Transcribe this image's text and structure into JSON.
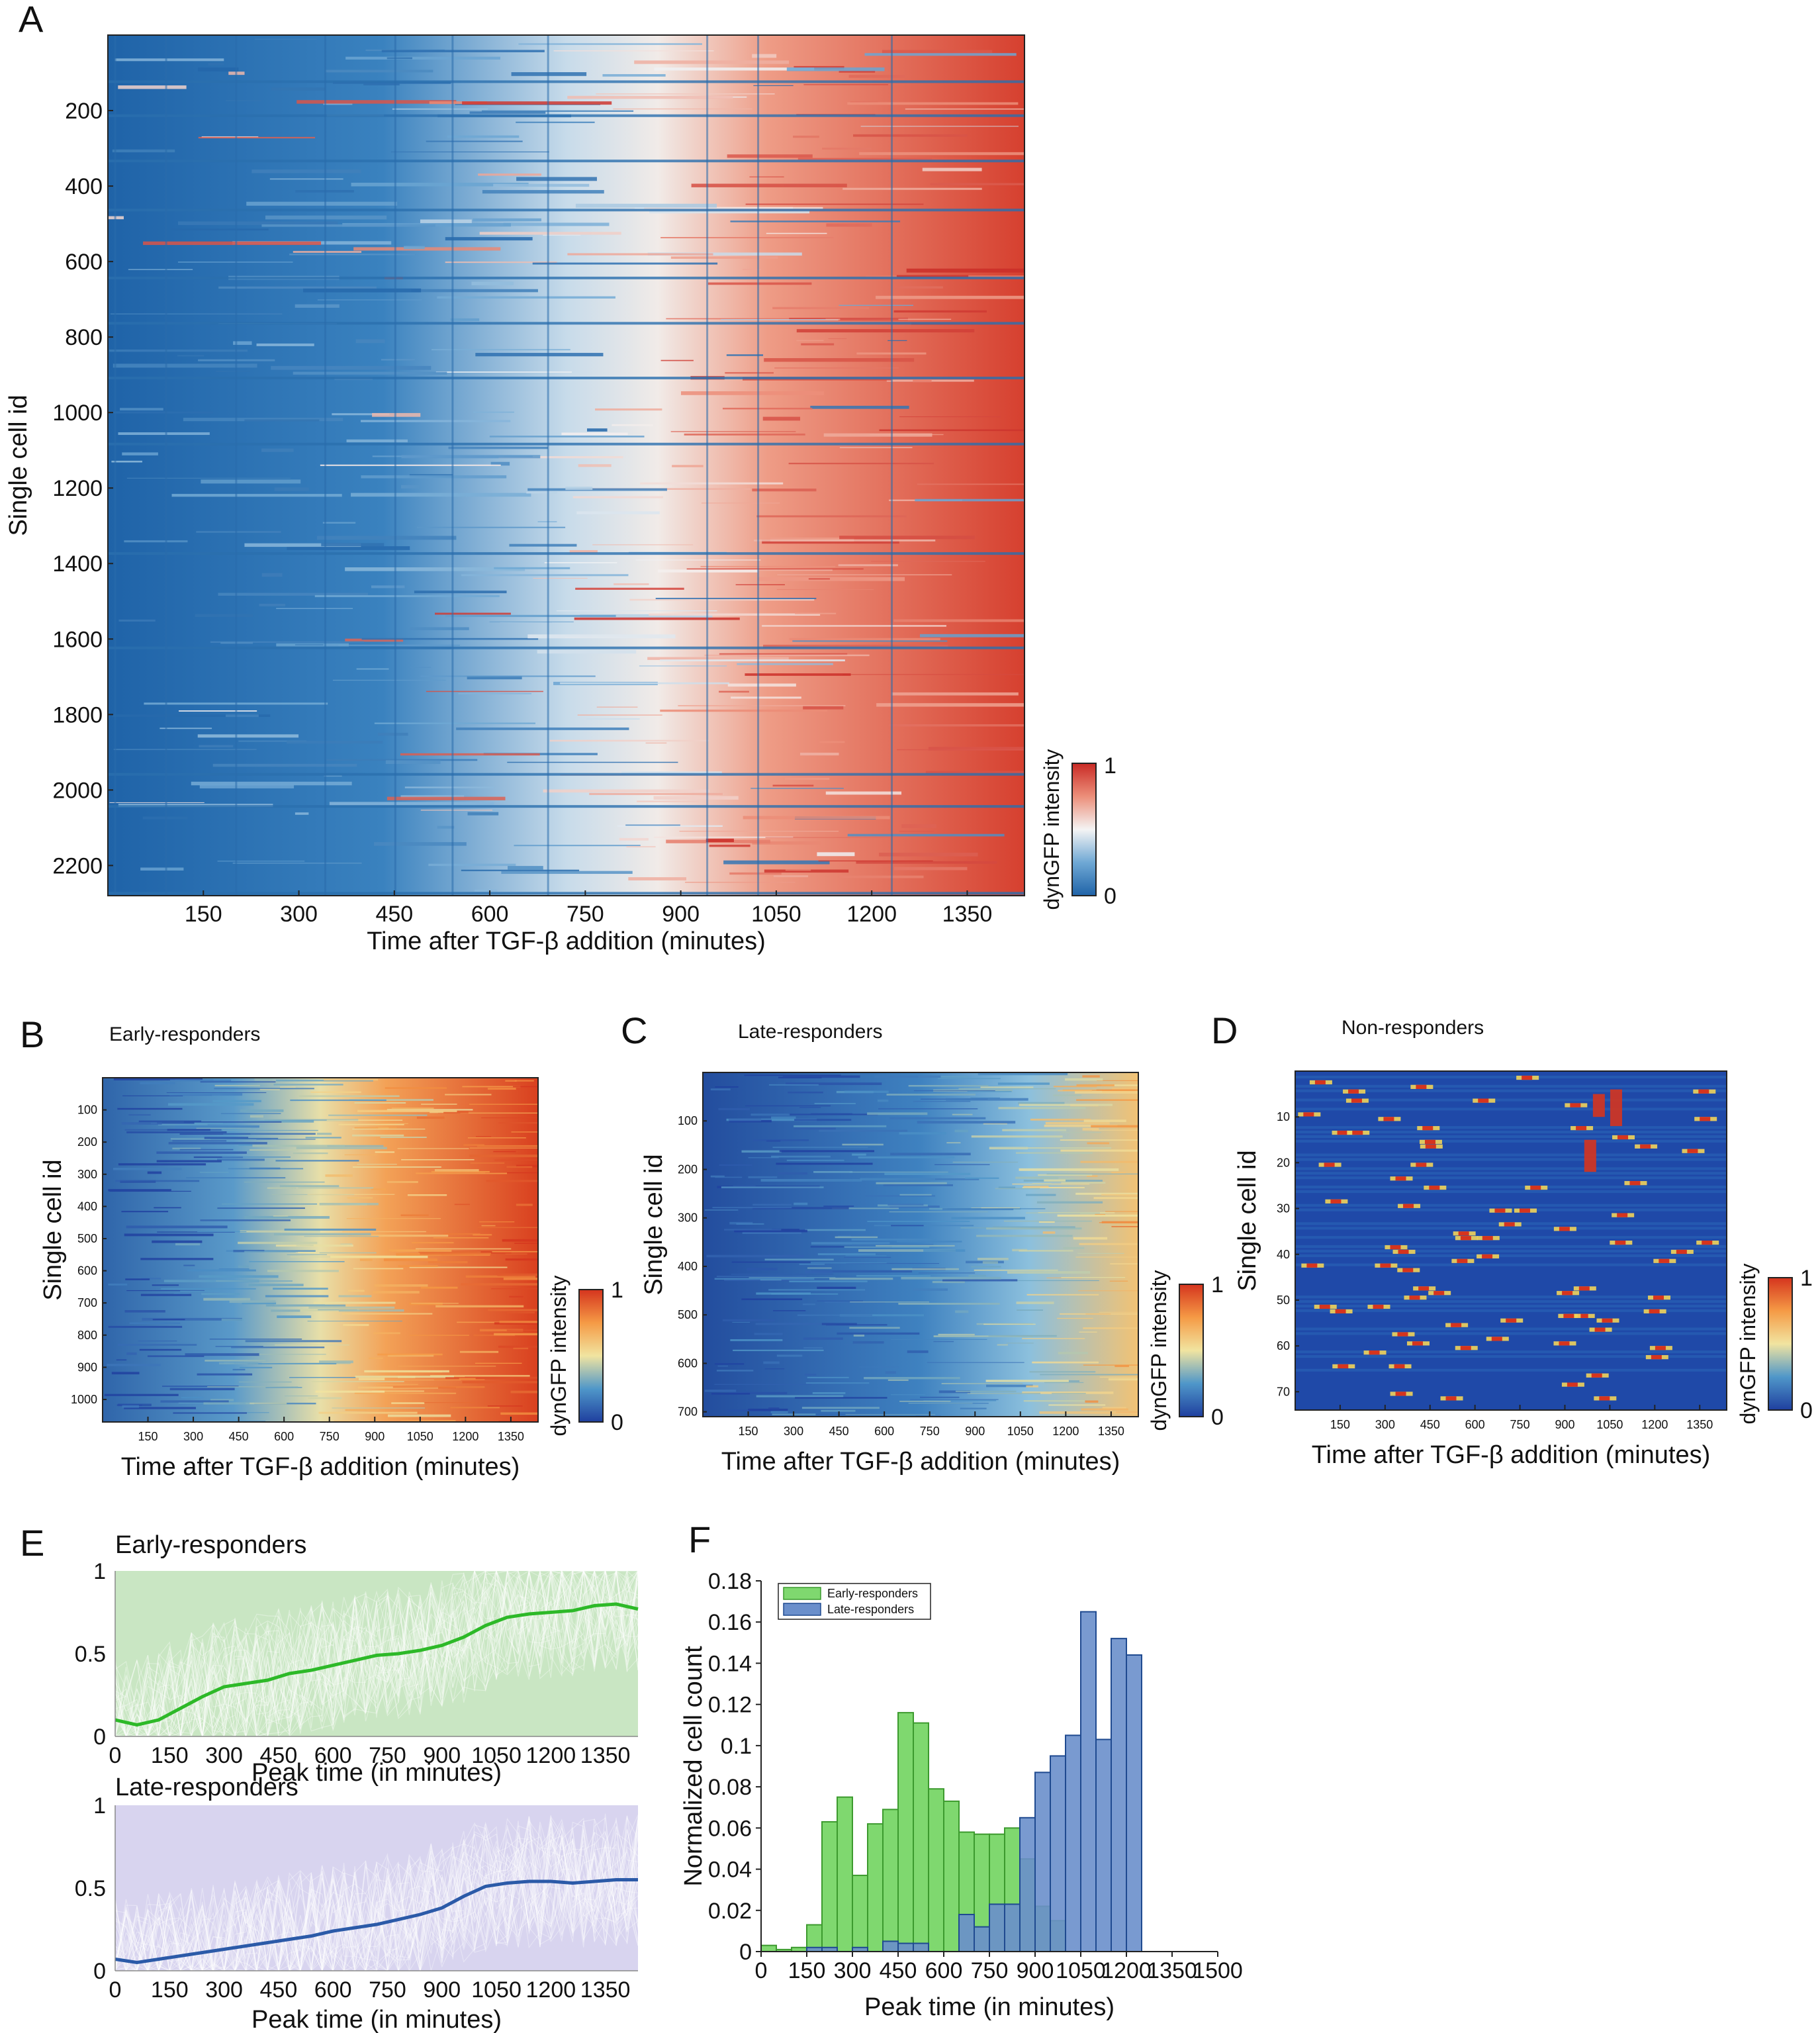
{
  "figure": {
    "colors": {
      "diverging_low": "#1f63a8",
      "diverging_mid": "#f4f4f4",
      "diverging_high": "#c92a25",
      "jet_low": "#1f3f9f",
      "jet_mid": "#f1e4a0",
      "jet_high": "#d5341e",
      "early": "#2db928",
      "early_band": "#c9e6c3",
      "early_bar": "#7fd86f",
      "late": "#2b5aa8",
      "late_band": "#d8d4ef",
      "late_bar": "#6a8fcb"
    }
  },
  "panel_a": {
    "letter": "A",
    "ylabel": "Single cell id",
    "xlabel": "Time after TGF-β addition (minutes)",
    "xticks": [
      "150",
      "300",
      "450",
      "600",
      "750",
      "900",
      "1050",
      "1200",
      "1350"
    ],
    "yticks": [
      "200",
      "400",
      "600",
      "800",
      "1000",
      "1200",
      "1400",
      "1600",
      "1800",
      "2000",
      "2200"
    ],
    "cbar_label": "dynGFP intensity",
    "cbar_max": "1",
    "cbar_min": "0"
  },
  "panel_b": {
    "letter": "B",
    "title": "Early-responders",
    "ylabel": "Single cell id",
    "xlabel": "Time after TGF-β addition (minutes)",
    "xticks": [
      "150",
      "300",
      "450",
      "600",
      "750",
      "900",
      "1050",
      "1200",
      "1350"
    ],
    "yticks": [
      "100",
      "200",
      "300",
      "400",
      "500",
      "600",
      "700",
      "800",
      "900",
      "1000"
    ],
    "cbar_label": "dynGFP intensity",
    "cbar_max": "1",
    "cbar_min": "0"
  },
  "panel_c": {
    "letter": "C",
    "title": "Late-responders",
    "ylabel": "Single cell id",
    "xlabel": "Time after TGF-β addition (minutes)",
    "xticks": [
      "150",
      "300",
      "450",
      "600",
      "750",
      "900",
      "1050",
      "1200",
      "1350"
    ],
    "yticks": [
      "100",
      "200",
      "300",
      "400",
      "500",
      "600",
      "700"
    ],
    "cbar_label": "dynGFP intensity",
    "cbar_max": "1",
    "cbar_min": "0"
  },
  "panel_d": {
    "letter": "D",
    "title": "Non-responders",
    "ylabel": "Single cell id",
    "xlabel": "Time after TGF-β addition (minutes)",
    "xticks": [
      "150",
      "300",
      "450",
      "600",
      "750",
      "900",
      "1050",
      "1200",
      "1350"
    ],
    "yticks": [
      "10",
      "20",
      "30",
      "40",
      "50",
      "60",
      "70"
    ],
    "cbar_label": "dynGFP intensity",
    "cbar_max": "1",
    "cbar_min": "0"
  },
  "panel_e": {
    "letter": "E",
    "top_title": "Early-responders",
    "bottom_title": "Late-responders",
    "xlabel": "Peak time (in minutes)",
    "xticks": [
      "0",
      "150",
      "300",
      "450",
      "600",
      "750",
      "900",
      "1050",
      "1200",
      "1350"
    ],
    "yticks": [
      "0",
      "0.5",
      "1"
    ]
  },
  "panel_f": {
    "letter": "F",
    "xlabel": "Peak time (in minutes)",
    "ylabel": "Normalized cell count",
    "xticks": [
      "0",
      "150",
      "300",
      "450",
      "600",
      "750",
      "900",
      "1050",
      "1200",
      "1350",
      "1500"
    ],
    "yticks": [
      "0",
      "0.02",
      "0.04",
      "0.06",
      "0.08",
      "0.1",
      "0.12",
      "0.14",
      "0.16",
      "0.18"
    ],
    "legend": [
      "Early-responders",
      "Late-responders"
    ]
  },
  "chart_data": [
    {
      "id": "A",
      "type": "heatmap",
      "title": "",
      "xlabel": "Time after TGF-β addition (minutes)",
      "ylabel": "Single cell id",
      "xlim": [
        0,
        1440
      ],
      "ylim": [
        0,
        2280
      ],
      "n_cells": 2280,
      "colorbar": {
        "label": "dynGFP intensity",
        "range": [
          0,
          1
        ],
        "colormap": "blue-white-red"
      },
      "pattern": "low (blue) before ~600 min, rising to high (red) after ~900 min"
    },
    {
      "id": "B",
      "type": "heatmap",
      "title": "Early-responders",
      "xlabel": "Time after TGF-β addition (minutes)",
      "ylabel": "Single cell id",
      "xlim": [
        0,
        1440
      ],
      "ylim": [
        0,
        1070
      ],
      "n_cells": 1070,
      "colorbar": {
        "label": "dynGFP intensity",
        "range": [
          0,
          1
        ],
        "colormap": "jet"
      }
    },
    {
      "id": "C",
      "type": "heatmap",
      "title": "Late-responders",
      "xlabel": "Time after TGF-β addition (minutes)",
      "ylabel": "Single cell id",
      "xlim": [
        0,
        1440
      ],
      "ylim": [
        0,
        710
      ],
      "n_cells": 710,
      "colorbar": {
        "label": "dynGFP intensity",
        "range": [
          0,
          1
        ],
        "colormap": "jet"
      }
    },
    {
      "id": "D",
      "type": "heatmap",
      "title": "Non-responders",
      "xlabel": "Time after TGF-β addition (minutes)",
      "ylabel": "Single cell id",
      "xlim": [
        0,
        1440
      ],
      "ylim": [
        0,
        74
      ],
      "n_cells": 74,
      "colorbar": {
        "label": "dynGFP intensity",
        "range": [
          0,
          1
        ],
        "colormap": "jet"
      }
    },
    {
      "id": "E-top",
      "type": "line",
      "title": "Early-responders",
      "xlabel": "Peak time (in minutes)",
      "xlim": [
        0,
        1440
      ],
      "ylim": [
        0,
        1
      ],
      "x": [
        0,
        60,
        120,
        180,
        240,
        300,
        360,
        420,
        480,
        540,
        600,
        660,
        720,
        780,
        840,
        900,
        960,
        1020,
        1080,
        1140,
        1200,
        1260,
        1320,
        1380,
        1440
      ],
      "series": [
        {
          "name": "mean",
          "values": [
            0.1,
            0.07,
            0.1,
            0.17,
            0.24,
            0.3,
            0.32,
            0.34,
            0.38,
            0.4,
            0.43,
            0.46,
            0.49,
            0.5,
            0.52,
            0.55,
            0.6,
            0.67,
            0.72,
            0.74,
            0.75,
            0.76,
            0.79,
            0.8,
            0.77
          ]
        }
      ],
      "band": "individual traces spanning 0–1"
    },
    {
      "id": "E-bottom",
      "type": "line",
      "title": "Late-responders",
      "xlabel": "Peak time (in minutes)",
      "xlim": [
        0,
        1440
      ],
      "ylim": [
        0,
        1
      ],
      "x": [
        0,
        60,
        120,
        180,
        240,
        300,
        360,
        420,
        480,
        540,
        600,
        660,
        720,
        780,
        840,
        900,
        960,
        1020,
        1080,
        1140,
        1200,
        1260,
        1320,
        1380,
        1440
      ],
      "series": [
        {
          "name": "mean",
          "values": [
            0.07,
            0.05,
            0.07,
            0.09,
            0.11,
            0.13,
            0.15,
            0.17,
            0.19,
            0.21,
            0.24,
            0.26,
            0.28,
            0.31,
            0.34,
            0.38,
            0.45,
            0.51,
            0.53,
            0.54,
            0.54,
            0.53,
            0.54,
            0.55,
            0.55
          ]
        }
      ],
      "band": "individual traces spanning 0–1"
    },
    {
      "id": "F",
      "type": "bar",
      "xlabel": "Peak time (in minutes)",
      "ylabel": "Normalized cell count",
      "xlim": [
        0,
        1500
      ],
      "ylim": [
        0,
        0.18
      ],
      "bin_width": 50,
      "bin_starts": [
        0,
        50,
        100,
        150,
        200,
        250,
        300,
        350,
        400,
        450,
        500,
        550,
        600,
        650,
        700,
        750,
        800,
        850,
        900,
        950,
        1000,
        1050,
        1100,
        1150,
        1200,
        1250,
        1300,
        1350,
        1400
      ],
      "series": [
        {
          "name": "Early-responders",
          "values": [
            0.003,
            0.001,
            0.002,
            0.013,
            0.063,
            0.075,
            0.037,
            0.062,
            0.069,
            0.116,
            0.111,
            0.079,
            0.073,
            0.058,
            0.057,
            0.057,
            0.06,
            0.045,
            0.022,
            0.015,
            0,
            0,
            0,
            0,
            0,
            0,
            0,
            0,
            0
          ]
        },
        {
          "name": "Late-responders",
          "values": [
            0,
            0,
            0,
            0.002,
            0.002,
            0,
            0.002,
            0,
            0.005,
            0.004,
            0.004,
            0,
            0,
            0.018,
            0.012,
            0.023,
            0.023,
            0.065,
            0.087,
            0.095,
            0.105,
            0.165,
            0.103,
            0.152,
            0.144,
            0,
            0,
            0,
            0
          ]
        }
      ]
    }
  ]
}
